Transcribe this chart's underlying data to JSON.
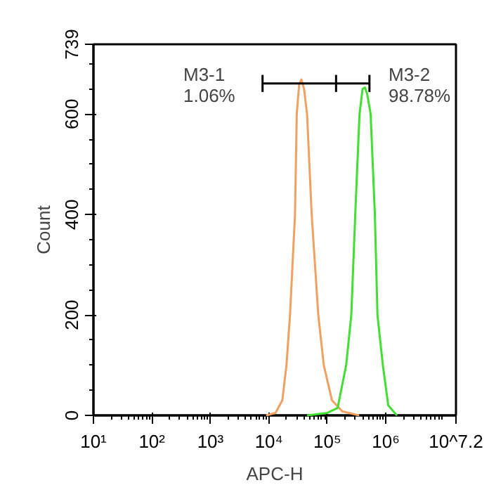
{
  "chart_data": {
    "type": "line",
    "xlabel": "APC-H",
    "ylabel": "Count",
    "log": "x",
    "xlim": [
      10,
      15848932
    ],
    "ylim": [
      0,
      739
    ],
    "xticks": [
      {
        "value": 10,
        "label": "10¹"
      },
      {
        "value": 100,
        "label": "10²"
      },
      {
        "value": 1000,
        "label": "10³"
      },
      {
        "value": 10000,
        "label": "10⁴"
      },
      {
        "value": 100000,
        "label": "10⁵"
      },
      {
        "value": 1000000,
        "label": "10⁶"
      },
      {
        "value": 15848932,
        "label": "10^7.2"
      }
    ],
    "yticks": [
      0,
      200,
      400,
      600,
      739
    ],
    "grid": false,
    "marker": "none",
    "line_style": "solid",
    "series": [
      {
        "color": "#f0a060",
        "x": [
          9000,
          13000,
          17000,
          20000,
          23000,
          28000,
          30000,
          33000,
          36000,
          40000,
          45000,
          54000,
          70000,
          87000,
          120000,
          180000,
          350000
        ],
        "values": [
          0,
          5,
          30,
          100,
          200,
          400,
          600,
          660,
          669,
          650,
          600,
          400,
          200,
          100,
          30,
          8,
          0
        ]
      },
      {
        "color": "#44dd33",
        "x": [
          45000,
          100000,
          150000,
          210000,
          257000,
          300000,
          355000,
          400000,
          440000,
          480000,
          550000,
          650000,
          720000,
          890000,
          1100000,
          1550000
        ],
        "values": [
          0,
          5,
          15,
          100,
          200,
          400,
          600,
          650,
          653,
          640,
          600,
          400,
          200,
          100,
          20,
          0
        ]
      },
      {
        "color": "#000000",
        "x": [
          7800,
          141000,
          525000
        ],
        "values": [
          661,
          661,
          661
        ],
        "errors": [
          17,
          17,
          17
        ]
      }
    ],
    "annotations": [
      "M3-1\n1.06%",
      "M3-2\n98.78%"
    ]
  }
}
